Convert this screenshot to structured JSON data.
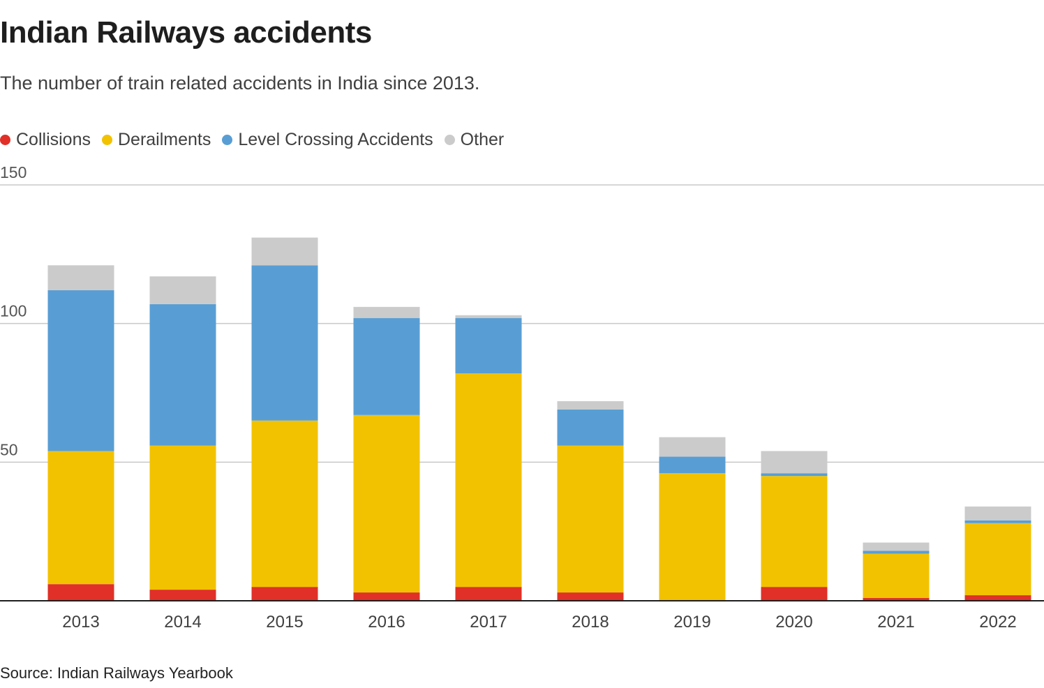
{
  "chart_data": {
    "type": "bar",
    "stacked": true,
    "title": "Indian Railways accidents",
    "subtitle": "The number of train related accidents in India since 2013.",
    "source": "Source: Indian Railways Yearbook",
    "categories": [
      "2013",
      "2014",
      "2015",
      "2016",
      "2017",
      "2018",
      "2019",
      "2020",
      "2021",
      "2022"
    ],
    "series": [
      {
        "name": "Collisions",
        "color": "#e03028",
        "values": [
          6,
          4,
          5,
          3,
          5,
          3,
          0,
          5,
          1,
          2
        ]
      },
      {
        "name": "Derailments",
        "color": "#f2c200",
        "values": [
          48,
          52,
          60,
          64,
          77,
          53,
          46,
          40,
          16,
          26
        ]
      },
      {
        "name": "Level Crossing Accidents",
        "color": "#589ed4",
        "values": [
          58,
          51,
          56,
          35,
          20,
          13,
          6,
          1,
          1,
          1
        ]
      },
      {
        "name": "Other",
        "color": "#cbcbcb",
        "values": [
          9,
          10,
          10,
          4,
          1,
          3,
          7,
          8,
          3,
          5
        ]
      }
    ],
    "y_ticks": [
      "50",
      "100",
      "150"
    ],
    "ylim": [
      0,
      150
    ],
    "grid": true,
    "legend_position": "top-left"
  }
}
